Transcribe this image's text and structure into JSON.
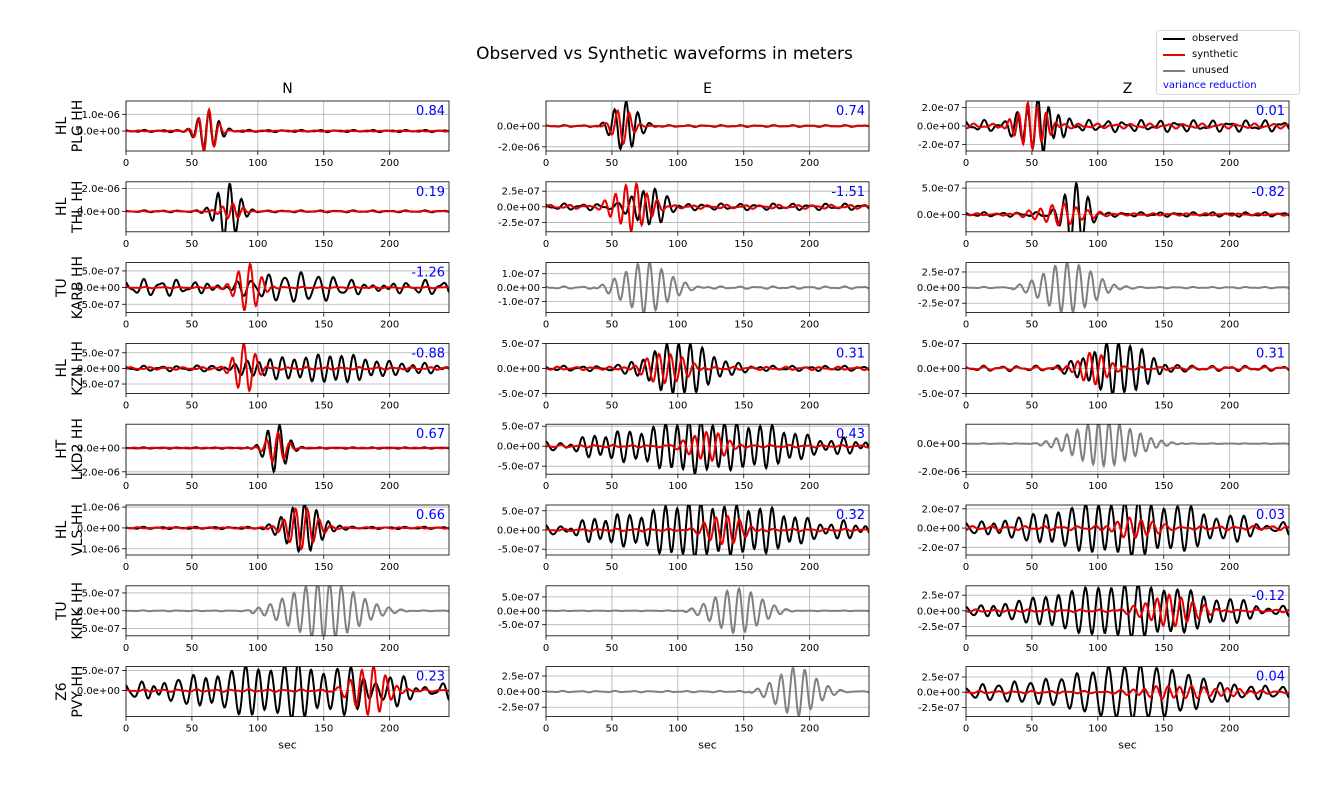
{
  "chart_data": {
    "type": "line",
    "title": "Observed vs Synthetic waveforms in meters",
    "columns": [
      "N",
      "E",
      "Z"
    ],
    "xlabel": "sec",
    "xlim": [
      0,
      245
    ],
    "xticks": [
      0,
      50,
      100,
      150,
      200
    ],
    "legend": {
      "placement": "top-right",
      "entries": [
        {
          "label": "observed",
          "color": "#000000"
        },
        {
          "label": "synthetic",
          "color": "#e60000"
        },
        {
          "label": "unused",
          "color": "#808080"
        },
        {
          "label": "variance reduction",
          "color": "#0000ff",
          "text_only": true
        }
      ]
    },
    "colors": {
      "observed": "#000000",
      "synthetic": "#e60000",
      "unused": "#808080",
      "vr": "#0000ff",
      "grid": "#b0b0b0"
    },
    "stations": [
      {
        "net": "HL",
        "name": "PLG HH",
        "panels": [
          {
            "vr": "0.84",
            "ylim": [
              -1.2e-06,
              1.8e-06
            ],
            "yticks": [
              {
                "v": 1e-06,
                "label": "1.0e-06"
              },
              {
                "v": 0,
                "label": "0.0e+00"
              }
            ],
            "obs": {
              "t0": 46,
              "t1": 78,
              "amp": 1.1e-06,
              "period": 8,
              "bg": 6e-08
            },
            "syn": {
              "t0": 48,
              "t1": 75,
              "amp": 1.3e-06,
              "period": 8,
              "bg": 3e-08
            }
          },
          {
            "vr": "0.74",
            "ylim": [
              -2.4e-06,
              2.4e-06
            ],
            "yticks": [
              {
                "v": 0,
                "label": "0.0e+00"
              },
              {
                "v": -2e-06,
                "label": "-2.0e-06"
              }
            ],
            "obs": {
              "t0": 42,
              "t1": 78,
              "amp": 2.4e-06,
              "period": 9,
              "bg": 8e-08
            },
            "syn": {
              "t0": 44,
              "t1": 72,
              "amp": 1.7e-06,
              "period": 9,
              "bg": 4e-08
            }
          },
          {
            "vr": "0.01",
            "ylim": [
              -2.7e-07,
              2.7e-07
            ],
            "yticks": [
              {
                "v": 2e-07,
                "label": "2.0e-07"
              },
              {
                "v": 0,
                "label": "0.0e+00"
              },
              {
                "v": -2e-07,
                "label": "-2.0e-07"
              }
            ],
            "obs": {
              "t0": 30,
              "t1": 80,
              "amp": 2.5e-07,
              "period": 8,
              "bg": 6e-08
            },
            "syn": {
              "t0": 28,
              "t1": 70,
              "amp": 2.4e-07,
              "period": 7,
              "bg": 2.5e-08
            }
          }
        ]
      },
      {
        "net": "HL",
        "name": "THL HH",
        "panels": [
          {
            "vr": "0.19",
            "ylim": [
              -1.8e-06,
              2.6e-06
            ],
            "yticks": [
              {
                "v": 2e-06,
                "label": "2.0e-06"
              },
              {
                "v": 0,
                "label": "0.0e+00"
              }
            ],
            "obs": {
              "t0": 60,
              "t1": 95,
              "amp": 2.4e-06,
              "period": 9,
              "bg": 8e-08
            },
            "syn": {
              "t0": 65,
              "t1": 95,
              "amp": 7e-07,
              "period": 8,
              "bg": 4e-08
            }
          },
          {
            "vr": "-1.51",
            "ylim": [
              -4e-07,
              4e-07
            ],
            "yticks": [
              {
                "v": 2.5e-07,
                "label": "2.5e-07"
              },
              {
                "v": 0,
                "label": "0.0e+00"
              },
              {
                "v": -2.5e-07,
                "label": "-2.5e-07"
              }
            ],
            "obs": {
              "t0": 55,
              "t1": 100,
              "amp": 3.2e-07,
              "period": 9,
              "bg": 5e-08
            },
            "syn": {
              "t0": 40,
              "t1": 90,
              "amp": 3.8e-07,
              "period": 8,
              "bg": 3e-08
            }
          },
          {
            "vr": "-0.82",
            "ylim": [
              -3.3e-07,
              6.2e-07
            ],
            "yticks": [
              {
                "v": 5e-07,
                "label": "5.0e-07"
              },
              {
                "v": 0,
                "label": "0.0e+00"
              }
            ],
            "obs": {
              "t0": 65,
              "t1": 100,
              "amp": 6e-07,
              "period": 9,
              "bg": 4e-08
            },
            "syn": {
              "t0": 40,
              "t1": 105,
              "amp": 2e-07,
              "period": 9,
              "bg": 2e-08
            }
          }
        ]
      },
      {
        "net": "TU",
        "name": "KARB HH",
        "panels": [
          {
            "vr": "-1.26",
            "ylim": [
              -7.5e-07,
              7.5e-07
            ],
            "yticks": [
              {
                "v": 5e-07,
                "label": "5.0e-07"
              },
              {
                "v": 0,
                "label": "0.0e+00"
              },
              {
                "v": -5e-07,
                "label": "-5.0e-07"
              }
            ],
            "obs": {
              "t0": 0,
              "t1": 245,
              "amp": 2.5e-07,
              "period": 12,
              "bg": 2e-07
            },
            "syn": {
              "t0": 75,
              "t1": 110,
              "amp": 7e-07,
              "period": 9,
              "bg": 2e-08
            }
          },
          {
            "vr": "",
            "ylim": [
              -1.8e-07,
              1.8e-07
            ],
            "yticks": [
              {
                "v": 1e-07,
                "label": "1.0e-07"
              },
              {
                "v": 0,
                "label": "0.0e+00"
              },
              {
                "v": -1e-07,
                "label": "-1.0e-07"
              }
            ],
            "unused": {
              "t0": 42,
              "t1": 110,
              "amp": 1.8e-07,
              "period": 9,
              "bg": 8e-09
            }
          },
          {
            "vr": "",
            "ylim": [
              -4e-07,
              4e-07
            ],
            "yticks": [
              {
                "v": 2.5e-07,
                "label": "2.5e-07"
              },
              {
                "v": 0,
                "label": "0.0e+00"
              },
              {
                "v": -2.5e-07,
                "label": "-2.5e-07"
              }
            ],
            "unused": {
              "t0": 40,
              "t1": 115,
              "amp": 4e-07,
              "period": 9,
              "bg": 1e-08
            }
          }
        ]
      },
      {
        "net": "HL",
        "name": "KZN HH",
        "panels": [
          {
            "vr": "-0.88",
            "ylim": [
              -8e-07,
              8e-07
            ],
            "yticks": [
              {
                "v": 5e-07,
                "label": "5.0e-07"
              },
              {
                "v": 0,
                "label": "0.0e+00"
              },
              {
                "v": -5e-07,
                "label": "-5.0e-07"
              }
            ],
            "obs": {
              "t0": 55,
              "t1": 245,
              "amp": 4e-07,
              "period": 9,
              "bg": 8e-08
            },
            "syn": {
              "t0": 75,
              "t1": 105,
              "amp": 8e-07,
              "period": 9,
              "bg": 4e-08
            }
          },
          {
            "vr": "0.31",
            "ylim": [
              -5e-07,
              5e-07
            ],
            "yticks": [
              {
                "v": 5e-07,
                "label": "5.0e-07"
              },
              {
                "v": 0,
                "label": "0.0e+00"
              },
              {
                "v": -5e-07,
                "label": "-5.0e-07"
              }
            ],
            "obs": {
              "t0": 55,
              "t1": 150,
              "amp": 5e-07,
              "period": 9,
              "bg": 5e-08
            },
            "syn": {
              "t0": 60,
              "t1": 120,
              "amp": 3e-07,
              "period": 9,
              "bg": 3e-08
            }
          },
          {
            "vr": "0.31",
            "ylim": [
              -5e-07,
              5e-07
            ],
            "yticks": [
              {
                "v": 5e-07,
                "label": "5.0e-07"
              },
              {
                "v": 0,
                "label": "0.0e+00"
              },
              {
                "v": -5e-07,
                "label": "-5.0e-07"
              }
            ],
            "obs": {
              "t0": 70,
              "t1": 160,
              "amp": 5e-07,
              "period": 9,
              "bg": 5e-08
            },
            "syn": {
              "t0": 75,
              "t1": 120,
              "amp": 3e-07,
              "period": 9,
              "bg": 3e-08
            }
          }
        ]
      },
      {
        "net": "HT",
        "name": "LKD2 HH",
        "panels": [
          {
            "vr": "0.67",
            "ylim": [
              -2.2e-06,
              2e-06
            ],
            "yticks": [
              {
                "v": 0,
                "label": "0.0e+00"
              },
              {
                "v": -2e-06,
                "label": "-2.0e-06"
              }
            ],
            "obs": {
              "t0": 98,
              "t1": 130,
              "amp": 2e-06,
              "period": 9,
              "bg": 5e-08
            },
            "syn": {
              "t0": 100,
              "t1": 128,
              "amp": 1.3e-06,
              "period": 9,
              "bg": 3e-08
            }
          },
          {
            "vr": "0.43",
            "ylim": [
              -7e-07,
              5.5e-07
            ],
            "yticks": [
              {
                "v": 5e-07,
                "label": "5.0e-07"
              },
              {
                "v": 0,
                "label": "0.0e+00"
              },
              {
                "v": -5e-07,
                "label": "-5.0e-07"
              }
            ],
            "obs": {
              "t0": 0,
              "t1": 245,
              "amp": 6e-07,
              "period": 9,
              "bg": 1e-07
            },
            "syn": {
              "t0": 95,
              "t1": 150,
              "amp": 3.5e-07,
              "period": 9,
              "bg": 3e-08
            }
          },
          {
            "vr": "",
            "ylim": [
              -2.2e-06,
              1.4e-06
            ],
            "yticks": [
              {
                "v": 0,
                "label": "0.0e+00"
              },
              {
                "v": -2e-06,
                "label": "-2.0e-06"
              }
            ],
            "unused": {
              "t0": 60,
              "t1": 150,
              "amp": 1.6e-06,
              "period": 8,
              "bg": 2e-08
            }
          }
        ]
      },
      {
        "net": "HL",
        "name": "VLS HH",
        "panels": [
          {
            "vr": "0.66",
            "ylim": [
              -1.3e-06,
              1.1e-06
            ],
            "yticks": [
              {
                "v": 1e-06,
                "label": "1.0e-06"
              },
              {
                "v": 0,
                "label": "0.0e+00"
              },
              {
                "v": -1e-06,
                "label": "-1.0e-06"
              }
            ],
            "obs": {
              "t0": 108,
              "t1": 160,
              "amp": 1.2e-06,
              "period": 9,
              "bg": 5e-08
            },
            "syn": {
              "t0": 112,
              "t1": 155,
              "amp": 1e-06,
              "period": 9,
              "bg": 3e-08
            }
          },
          {
            "vr": "0.32",
            "ylim": [
              -6.5e-07,
              6.5e-07
            ],
            "yticks": [
              {
                "v": 5e-07,
                "label": "5.0e-07"
              },
              {
                "v": 0,
                "label": "0.0e+00"
              },
              {
                "v": -5e-07,
                "label": "-5.0e-07"
              }
            ],
            "obs": {
              "t0": 0,
              "t1": 245,
              "amp": 6.5e-07,
              "period": 9,
              "bg": 1.2e-07
            },
            "syn": {
              "t0": 110,
              "t1": 160,
              "amp": 4e-07,
              "period": 9,
              "bg": 3e-08
            }
          },
          {
            "vr": "0.03",
            "ylim": [
              -2.8e-07,
              2.4e-07
            ],
            "yticks": [
              {
                "v": 2e-07,
                "label": "2.0e-07"
              },
              {
                "v": 0,
                "label": "0.0e+00"
              },
              {
                "v": -2e-07,
                "label": "-2.0e-07"
              }
            ],
            "obs": {
              "t0": 0,
              "t1": 245,
              "amp": 2.6e-07,
              "period": 10,
              "bg": 5e-08
            },
            "syn": {
              "t0": 100,
              "t1": 160,
              "amp": 1e-07,
              "period": 9,
              "bg": 2e-08
            }
          }
        ]
      },
      {
        "net": "TU",
        "name": "KIRK HH",
        "panels": [
          {
            "vr": "",
            "ylim": [
              -7e-07,
              7e-07
            ],
            "yticks": [
              {
                "v": 5e-07,
                "label": "5.0e-07"
              },
              {
                "v": 0,
                "label": "0.0e+00"
              },
              {
                "v": -5e-07,
                "label": "-5.0e-07"
              }
            ],
            "unused": {
              "t0": 100,
              "t1": 200,
              "amp": 8e-07,
              "period": 9,
              "bg": 1e-08
            }
          },
          {
            "vr": "",
            "ylim": [
              -9e-07,
              9e-07
            ],
            "yticks": [
              {
                "v": 5e-07,
                "label": "5.0e-07"
              },
              {
                "v": 0,
                "label": "0.0e+00"
              },
              {
                "v": -5e-07,
                "label": "-5.0e-07"
              }
            ],
            "unused": {
              "t0": 110,
              "t1": 180,
              "amp": 8e-07,
              "period": 9,
              "bg": 1e-08
            }
          },
          {
            "vr": "-0.12",
            "ylim": [
              -4e-07,
              4e-07
            ],
            "yticks": [
              {
                "v": 2.5e-07,
                "label": "2.5e-07"
              },
              {
                "v": 0,
                "label": "0.0e+00"
              },
              {
                "v": -2.5e-07,
                "label": "-2.5e-07"
              }
            ],
            "obs": {
              "t0": 0,
              "t1": 245,
              "amp": 4e-07,
              "period": 10,
              "bg": 5e-08
            },
            "syn": {
              "t0": 120,
              "t1": 190,
              "amp": 2.5e-07,
              "period": 9,
              "bg": 2e-08
            }
          }
        ]
      },
      {
        "net": "Z6",
        "name": "PVY HH",
        "panels": [
          {
            "vr": "0.23",
            "ylim": [
              -6.5e-07,
              6e-07
            ],
            "yticks": [
              {
                "v": 5e-07,
                "label": "5.0e-07"
              },
              {
                "v": 0,
                "label": "0.0e+00"
              }
            ],
            "obs": {
              "t0": 0,
              "t1": 245,
              "amp": 6e-07,
              "period": 10,
              "bg": 1.8e-07
            },
            "syn": {
              "t0": 160,
              "t1": 210,
              "amp": 6e-07,
              "period": 9,
              "bg": 3e-08
            }
          },
          {
            "vr": "",
            "ylim": [
              -4e-07,
              4e-07
            ],
            "yticks": [
              {
                "v": 2.5e-07,
                "label": "2.5e-07"
              },
              {
                "v": 0,
                "label": "0.0e+00"
              },
              {
                "v": -2.5e-07,
                "label": "-2.5e-07"
              }
            ],
            "unused": {
              "t0": 160,
              "t1": 220,
              "amp": 3.8e-07,
              "period": 9,
              "bg": 1e-08
            }
          },
          {
            "vr": "0.04",
            "ylim": [
              -4e-07,
              4.2e-07
            ],
            "yticks": [
              {
                "v": 2.5e-07,
                "label": "2.5e-07"
              },
              {
                "v": 0,
                "label": "0.0e+00"
              },
              {
                "v": -2.5e-07,
                "label": "-2.5e-07"
              }
            ],
            "obs": {
              "t0": 0,
              "t1": 245,
              "amp": 4e-07,
              "period": 12,
              "bg": 6e-08
            },
            "syn": {
              "t0": 100,
              "t1": 230,
              "amp": 1e-07,
              "period": 9,
              "bg": 2e-08
            }
          }
        ]
      }
    ]
  }
}
